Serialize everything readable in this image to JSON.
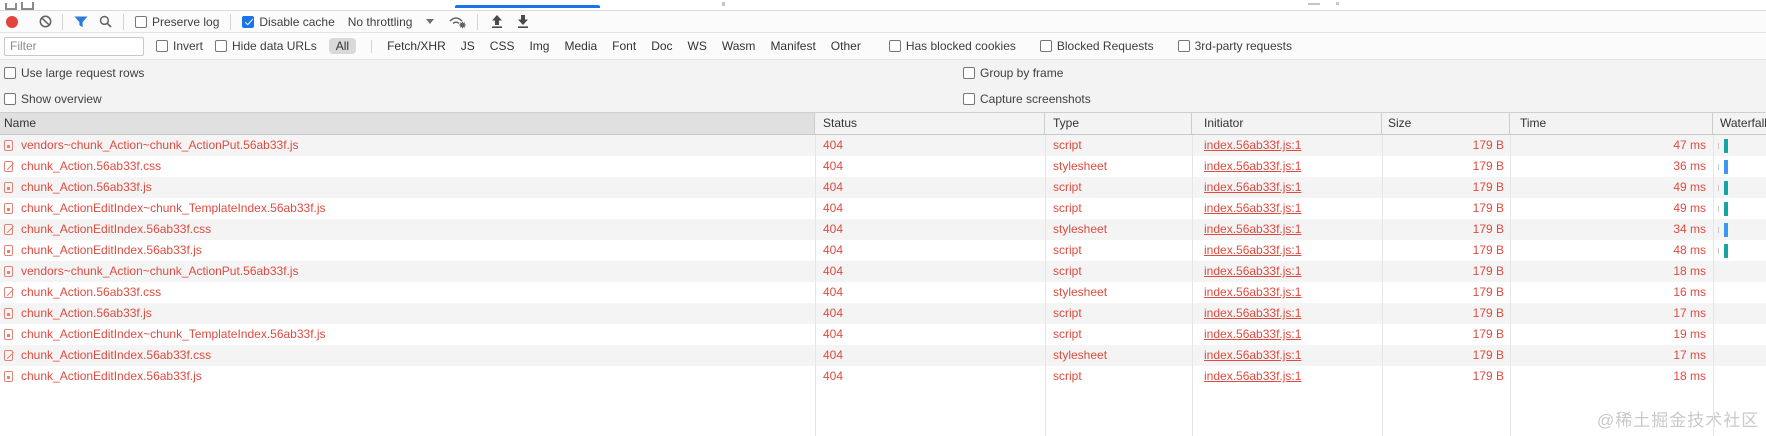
{
  "tabstrip": {
    "active_tab_color": "#1a73e8"
  },
  "toolbar": {
    "record_color": "#e0443a",
    "preserve_log_label": "Preserve log",
    "disable_cache_label": "Disable cache",
    "disable_cache_checked": true,
    "throttling_value": "No throttling"
  },
  "filterbar": {
    "filter_placeholder": "Filter",
    "invert_label": "Invert",
    "hide_data_urls_label": "Hide data URLs",
    "type_filters": [
      "All",
      "Fetch/XHR",
      "JS",
      "CSS",
      "Img",
      "Media",
      "Font",
      "Doc",
      "WS",
      "Wasm",
      "Manifest",
      "Other"
    ],
    "selected_type_filter": "All",
    "has_blocked_cookies_label": "Has blocked cookies",
    "blocked_requests_label": "Blocked Requests",
    "third_party_label": "3rd-party requests"
  },
  "options": {
    "use_large_request_rows_label": "Use large request rows",
    "group_by_frame_label": "Group by frame",
    "show_overview_label": "Show overview",
    "capture_screenshots_label": "Capture screenshots"
  },
  "table": {
    "columns": [
      "Name",
      "Status",
      "Type",
      "Initiator",
      "Size",
      "Time",
      "Waterfall"
    ],
    "error_color": "#de4b3f",
    "waterfall_colors": {
      "script": "#16a3a3",
      "stylesheet": "#3b97f0"
    },
    "rows": [
      {
        "name": "vendors~chunk_Action~chunk_ActionPut.56ab33f.js",
        "status": "404",
        "type": "script",
        "initiator": "index.56ab33f.js:1",
        "size": "179 B",
        "time": "47 ms",
        "bar": "script"
      },
      {
        "name": "chunk_Action.56ab33f.css",
        "status": "404",
        "type": "stylesheet",
        "initiator": "index.56ab33f.js:1",
        "size": "179 B",
        "time": "36 ms",
        "bar": "stylesheet"
      },
      {
        "name": "chunk_Action.56ab33f.js",
        "status": "404",
        "type": "script",
        "initiator": "index.56ab33f.js:1",
        "size": "179 B",
        "time": "49 ms",
        "bar": "script"
      },
      {
        "name": "chunk_ActionEditIndex~chunk_TemplateIndex.56ab33f.js",
        "status": "404",
        "type": "script",
        "initiator": "index.56ab33f.js:1",
        "size": "179 B",
        "time": "49 ms",
        "bar": "script"
      },
      {
        "name": "chunk_ActionEditIndex.56ab33f.css",
        "status": "404",
        "type": "stylesheet",
        "initiator": "index.56ab33f.js:1",
        "size": "179 B",
        "time": "34 ms",
        "bar": "stylesheet"
      },
      {
        "name": "chunk_ActionEditIndex.56ab33f.js",
        "status": "404",
        "type": "script",
        "initiator": "index.56ab33f.js:1",
        "size": "179 B",
        "time": "48 ms",
        "bar": "script"
      },
      {
        "name": "vendors~chunk_Action~chunk_ActionPut.56ab33f.js",
        "status": "404",
        "type": "script",
        "initiator": "index.56ab33f.js:1",
        "size": "179 B",
        "time": "18 ms",
        "bar": null
      },
      {
        "name": "chunk_Action.56ab33f.css",
        "status": "404",
        "type": "stylesheet",
        "initiator": "index.56ab33f.js:1",
        "size": "179 B",
        "time": "16 ms",
        "bar": null
      },
      {
        "name": "chunk_Action.56ab33f.js",
        "status": "404",
        "type": "script",
        "initiator": "index.56ab33f.js:1",
        "size": "179 B",
        "time": "17 ms",
        "bar": null
      },
      {
        "name": "chunk_ActionEditIndex~chunk_TemplateIndex.56ab33f.js",
        "status": "404",
        "type": "script",
        "initiator": "index.56ab33f.js:1",
        "size": "179 B",
        "time": "19 ms",
        "bar": null
      },
      {
        "name": "chunk_ActionEditIndex.56ab33f.css",
        "status": "404",
        "type": "stylesheet",
        "initiator": "index.56ab33f.js:1",
        "size": "179 B",
        "time": "17 ms",
        "bar": null
      },
      {
        "name": "chunk_ActionEditIndex.56ab33f.js",
        "status": "404",
        "type": "script",
        "initiator": "index.56ab33f.js:1",
        "size": "179 B",
        "time": "18 ms",
        "bar": null
      }
    ]
  },
  "watermark": "@稀土掘金技术社区"
}
